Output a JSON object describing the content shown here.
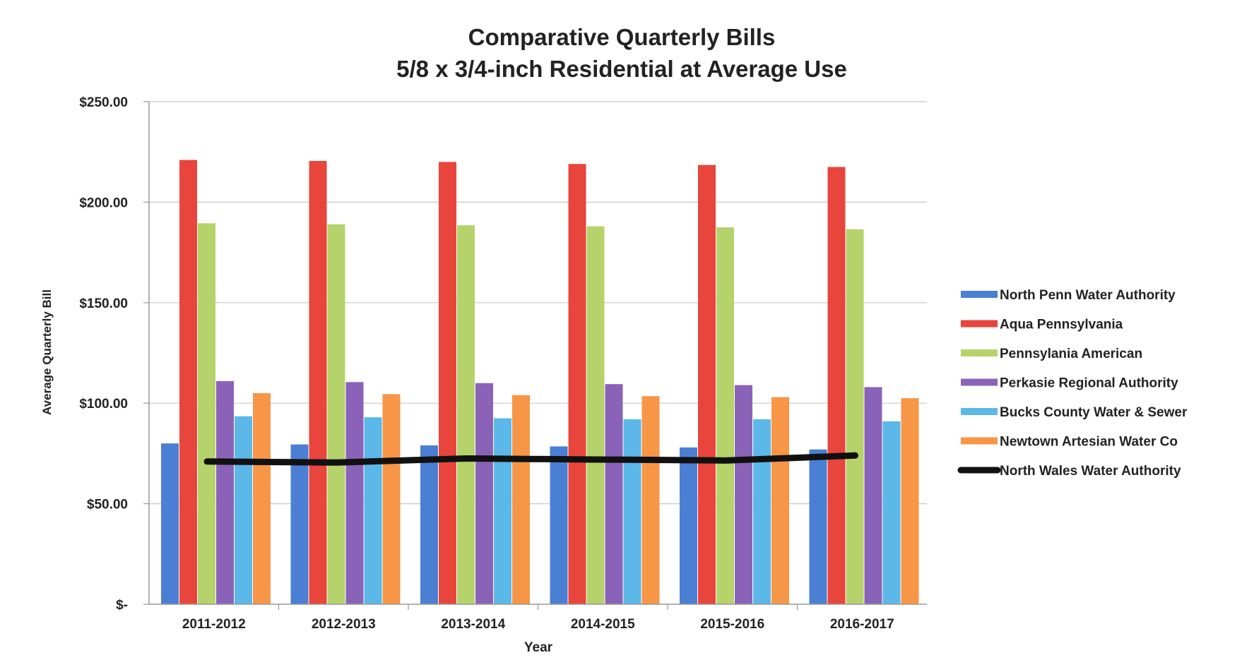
{
  "chart_data": {
    "type": "bar",
    "title_lines": [
      "Comparative Quarterly Bills",
      "5/8 x 3/4-inch Residential at Average Use"
    ],
    "xlabel": "Year",
    "ylabel": "Average Quarterly Bill",
    "ylim": [
      0,
      250
    ],
    "yticks": [
      0,
      50,
      100,
      150,
      200,
      250
    ],
    "ytick_labels": [
      "$-",
      "$50.00",
      "$100.00",
      "$150.00",
      "$200.00",
      "$250.00"
    ],
    "grid": true,
    "legend_position": "right",
    "categories": [
      "2011-2012",
      "2012-2013",
      "2013-2014",
      "2014-2015",
      "2015-2016",
      "2016-2017"
    ],
    "series": [
      {
        "name": "North Penn Water Authority",
        "type": "bar",
        "color": "#4a7fd4",
        "values": [
          80,
          79.5,
          79,
          78.5,
          78,
          77
        ]
      },
      {
        "name": "Aqua Pennsylvania",
        "type": "bar",
        "color": "#e8453c",
        "values": [
          221,
          220.5,
          220,
          219,
          218.5,
          217.5
        ]
      },
      {
        "name": "Pennsylania American",
        "type": "bar",
        "color": "#b5d36a",
        "values": [
          189.5,
          189,
          188.5,
          188,
          187.5,
          186.5
        ]
      },
      {
        "name": "Perkasie Regional Authority",
        "type": "bar",
        "color": "#8a63b8",
        "values": [
          111,
          110.5,
          110,
          109.5,
          109,
          108
        ]
      },
      {
        "name": "Bucks County Water & Sewer",
        "type": "bar",
        "color": "#5cb8e8",
        "values": [
          93.5,
          93,
          92.5,
          92,
          92,
          91
        ]
      },
      {
        "name": "Newtown Artesian Water Co",
        "type": "bar",
        "color": "#f79646",
        "values": [
          105,
          104.5,
          104,
          103.5,
          103,
          102.5
        ]
      },
      {
        "name": "North Wales Water Authority",
        "type": "line",
        "color": "#111111",
        "values": [
          71,
          70.5,
          72.5,
          72,
          71.5,
          74
        ]
      }
    ]
  }
}
